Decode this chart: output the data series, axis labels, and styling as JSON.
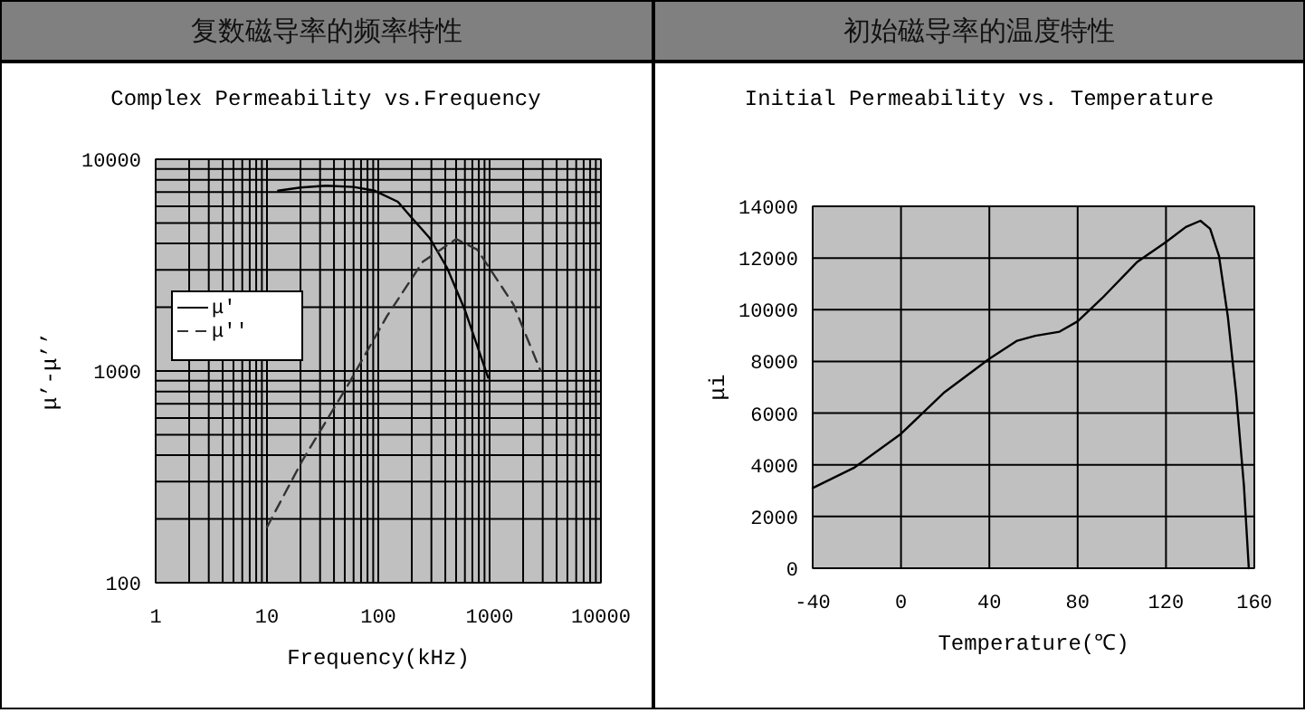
{
  "chart_data": [
    {
      "type": "line",
      "title": "复数磁导率的频率特性",
      "subtitle": "Complex Permeability vs.Frequency",
      "xlabel": "Frequency(kHz)",
      "ylabel": "μ’-μ’’",
      "log": "xy",
      "xlim": [
        1,
        10000
      ],
      "xticks": [
        1,
        10,
        100,
        1000,
        10000
      ],
      "ylim": [
        100,
        10000
      ],
      "yticks": [
        100,
        1000,
        10000
      ],
      "grid": true,
      "legend": "left",
      "series": [
        {
          "name": "μ'",
          "color": "#000000",
          "line_style": "solid",
          "x": [
            12.6,
            20,
            34,
            60,
            93,
            150,
            195,
            288,
            415,
            600,
            970
          ],
          "values": [
            7100,
            7350,
            7500,
            7400,
            7100,
            6300,
            5370,
            4260,
            3070,
            1940,
            930
          ]
        },
        {
          "name": "μ''",
          "color": "#333333",
          "line_style": "dashed",
          "x": [
            10,
            20.7,
            52.8,
            120,
            251,
            500,
            775,
            1630,
            2870
          ],
          "values": [
            183,
            376,
            850,
            1820,
            3280,
            4200,
            3740,
            2070,
            1000
          ]
        }
      ]
    },
    {
      "type": "line",
      "title": "初始磁导率的温度特性",
      "subtitle": "Initial Permeability vs. Temperature",
      "xlabel": "Temperature(℃)",
      "ylabel": "μi",
      "xlim": [
        -40,
        160
      ],
      "xticks": [
        -40,
        0,
        40,
        80,
        120,
        160
      ],
      "ylim": [
        0,
        14000
      ],
      "yticks": [
        0,
        2000,
        4000,
        6000,
        8000,
        10000,
        12000,
        14000
      ],
      "grid": true,
      "series": [
        {
          "color": "#000000",
          "line_style": "solid",
          "x": [
            -40,
            -21,
            0,
            19.7,
            40,
            52.6,
            60.8,
            71.8,
            80,
            91,
            107,
            120,
            129,
            135.6,
            140,
            144,
            148,
            151.8,
            155.3,
            157.5
          ],
          "values": [
            3100,
            3900,
            5200,
            6810,
            8100,
            8800,
            8990,
            9150,
            9550,
            10440,
            11850,
            12620,
            13200,
            13440,
            13130,
            12080,
            9740,
            6700,
            3180,
            0
          ]
        }
      ]
    }
  ]
}
